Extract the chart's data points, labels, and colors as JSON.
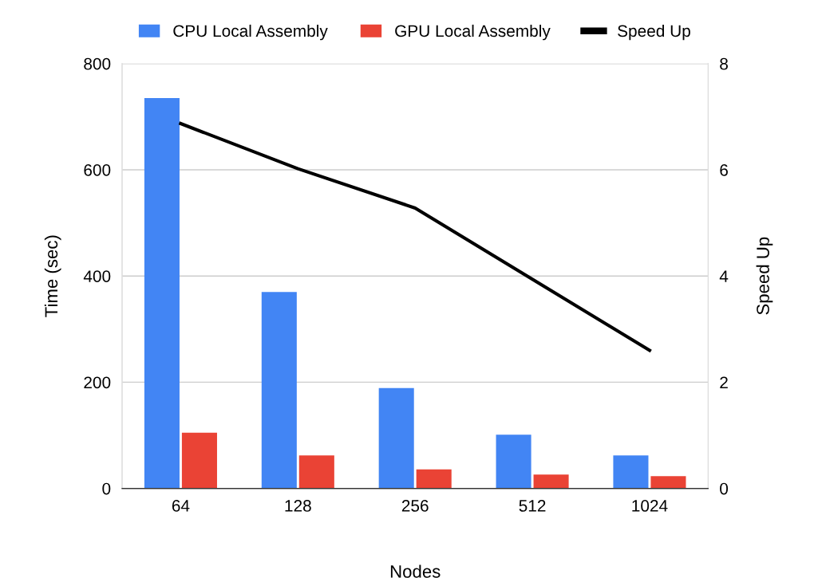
{
  "chart_data": {
    "type": "bar",
    "xlabel": "Nodes",
    "ylabel": "Time (sec)",
    "y2label": "Speed Up",
    "categories": [
      "64",
      "128",
      "256",
      "512",
      "1024"
    ],
    "series": [
      {
        "name": "CPU Local Assembly",
        "color": "#4285f4",
        "values": [
          735,
          370,
          189,
          101,
          62
        ]
      },
      {
        "name": "GPU Local Assembly",
        "color": "#ea4335",
        "values": [
          105,
          62,
          36,
          26,
          23
        ]
      },
      {
        "name": "Speed Up",
        "type": "line",
        "axis": "y2",
        "color": "#000000",
        "values": [
          6.87,
          6.02,
          5.28,
          3.94,
          2.6
        ]
      }
    ],
    "ylim": [
      0,
      800
    ],
    "yticks": [
      0,
      200,
      400,
      600,
      800
    ],
    "y2lim": [
      0,
      8
    ],
    "y2ticks": [
      0,
      2,
      4,
      6,
      8
    ],
    "grid": "y",
    "legend": "top",
    "marker": "none",
    "line_style": "solid"
  }
}
